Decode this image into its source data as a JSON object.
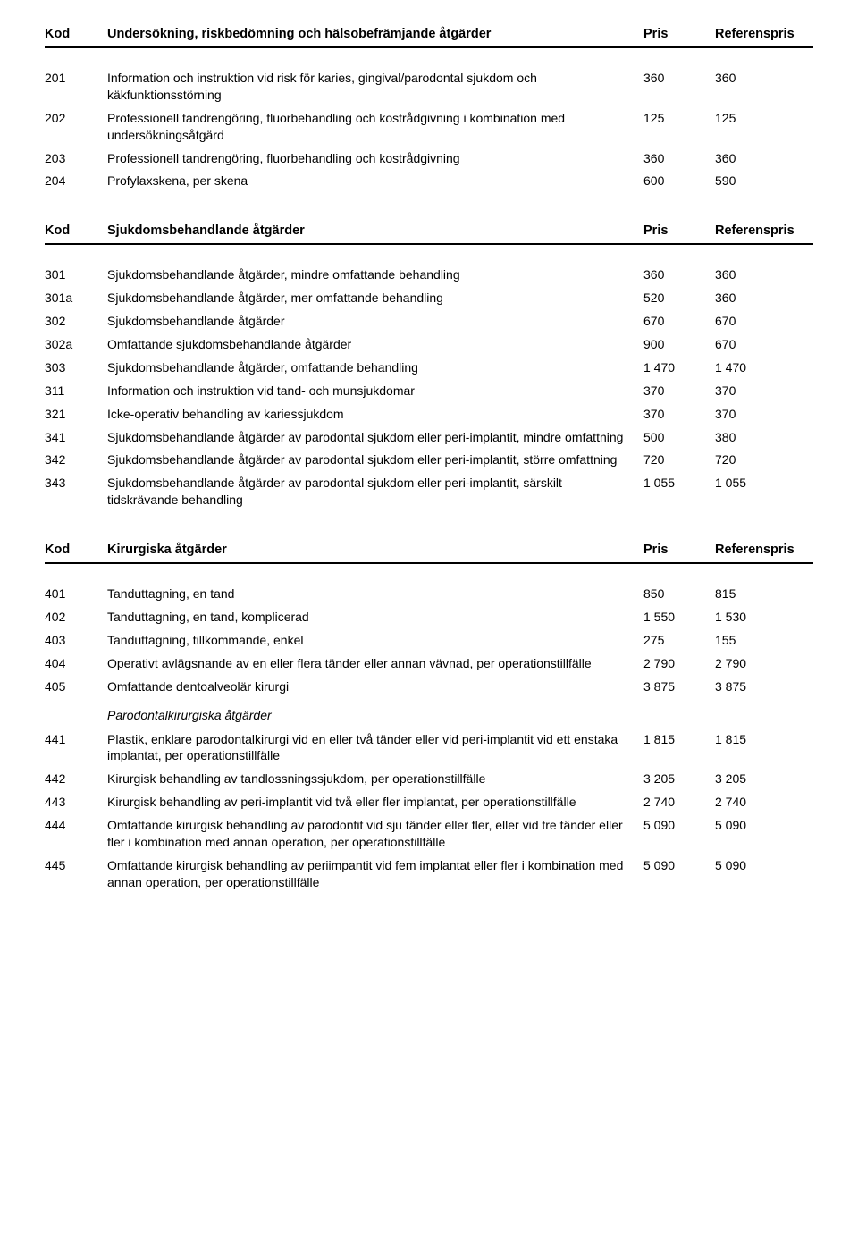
{
  "columns": {
    "kod": "Kod",
    "pris": "Pris",
    "ref": "Referenspris"
  },
  "sections": [
    {
      "title": "Undersökning, riskbedömning och hälsobefrämjande åtgärder",
      "rows": [
        {
          "kod": "201",
          "desc": "Information och instruktion vid risk för karies, gingival/parodontal sjukdom och käkfunktionsstörning",
          "pris": "360",
          "ref": "360"
        },
        {
          "kod": "202",
          "desc": "Professionell tandrengöring, fluorbehandling och kostrådgivning i kombination med undersökningsåtgärd",
          "pris": "125",
          "ref": "125"
        },
        {
          "kod": "203",
          "desc": "Professionell tandrengöring, fluorbehandling och kostrådgivning",
          "pris": "360",
          "ref": "360"
        },
        {
          "kod": "204",
          "desc": "Profylaxskena, per skena",
          "pris": "600",
          "ref": "590"
        }
      ]
    },
    {
      "title": "Sjukdomsbehandlande åtgärder",
      "rows": [
        {
          "kod": "301",
          "desc": "Sjukdomsbehandlande åtgärder, mindre omfattande behandling",
          "pris": "360",
          "ref": "360"
        },
        {
          "kod": "301a",
          "desc": "Sjukdomsbehandlande åtgärder, mer omfattande behandling",
          "pris": "520",
          "ref": "360"
        },
        {
          "kod": "302",
          "desc": "Sjukdomsbehandlande åtgärder",
          "pris": "670",
          "ref": "670"
        },
        {
          "kod": "302a",
          "desc": "Omfattande sjukdomsbehandlande åtgärder",
          "pris": "900",
          "ref": "670"
        },
        {
          "kod": "303",
          "desc": "Sjukdomsbehandlande åtgärder, omfattande behandling",
          "pris": "1 470",
          "ref": "1 470"
        },
        {
          "kod": "311",
          "desc": "Information och instruktion vid tand- och munsjukdomar",
          "pris": "370",
          "ref": "370"
        },
        {
          "kod": "321",
          "desc": "Icke-operativ behandling av kariessjukdom",
          "pris": "370",
          "ref": "370"
        },
        {
          "kod": "341",
          "desc": "Sjukdomsbehandlande åtgärder av parodontal sjukdom eller peri-implantit, mindre omfattning",
          "pris": "500",
          "ref": "380"
        },
        {
          "kod": "342",
          "desc": "Sjukdomsbehandlande åtgärder av parodontal sjukdom eller peri-implantit, större omfattning",
          "pris": "720",
          "ref": "720"
        },
        {
          "kod": "343",
          "desc": "Sjukdomsbehandlande åtgärder av parodontal sjukdom eller peri-implantit, särskilt tidskrävande behandling",
          "pris": "1 055",
          "ref": "1 055"
        }
      ]
    },
    {
      "title": "Kirurgiska åtgärder",
      "rows": [
        {
          "kod": "401",
          "desc": "Tanduttagning, en tand",
          "pris": "850",
          "ref": "815"
        },
        {
          "kod": "402",
          "desc": "Tanduttagning, en tand, komplicerad",
          "pris": "1 550",
          "ref": "1 530"
        },
        {
          "kod": "403",
          "desc": "Tanduttagning, tillkommande, enkel",
          "pris": "275",
          "ref": "155"
        },
        {
          "kod": "404",
          "desc": "Operativt avlägsnande av en eller flera tänder eller annan vävnad, per operationstillfälle",
          "pris": "2 790",
          "ref": "2 790"
        },
        {
          "kod": "405",
          "desc": "Omfattande dentoalveolär kirurgi",
          "pris": "3 875",
          "ref": "3 875"
        },
        {
          "subheading": "Parodontalkirurgiska åtgärder"
        },
        {
          "kod": "441",
          "desc": "Plastik, enklare parodontalkirurgi vid en eller två tänder eller vid peri-implantit vid ett enstaka implantat, per operationstillfälle",
          "pris": "1 815",
          "ref": "1 815"
        },
        {
          "kod": "442",
          "desc": "Kirurgisk behandling av tandlossningssjukdom, per operationstillfälle",
          "pris": "3 205",
          "ref": "3 205"
        },
        {
          "kod": "443",
          "desc": "Kirurgisk behandling av peri-implantit vid två eller fler implantat, per operationstillfälle",
          "pris": "2 740",
          "ref": "2 740"
        },
        {
          "kod": "444",
          "desc": "Omfattande kirurgisk behandling av parodontit vid sju tänder eller fler, eller vid tre tänder eller fler i kombination med annan operation, per operationstillfälle",
          "pris": "5 090",
          "ref": "5 090"
        },
        {
          "kod": "445",
          "desc": "Omfattande kirurgisk behandling av periimpantit vid fem implantat eller fler i kombination med annan operation, per operationstillfälle",
          "pris": "5 090",
          "ref": "5 090"
        }
      ]
    }
  ]
}
